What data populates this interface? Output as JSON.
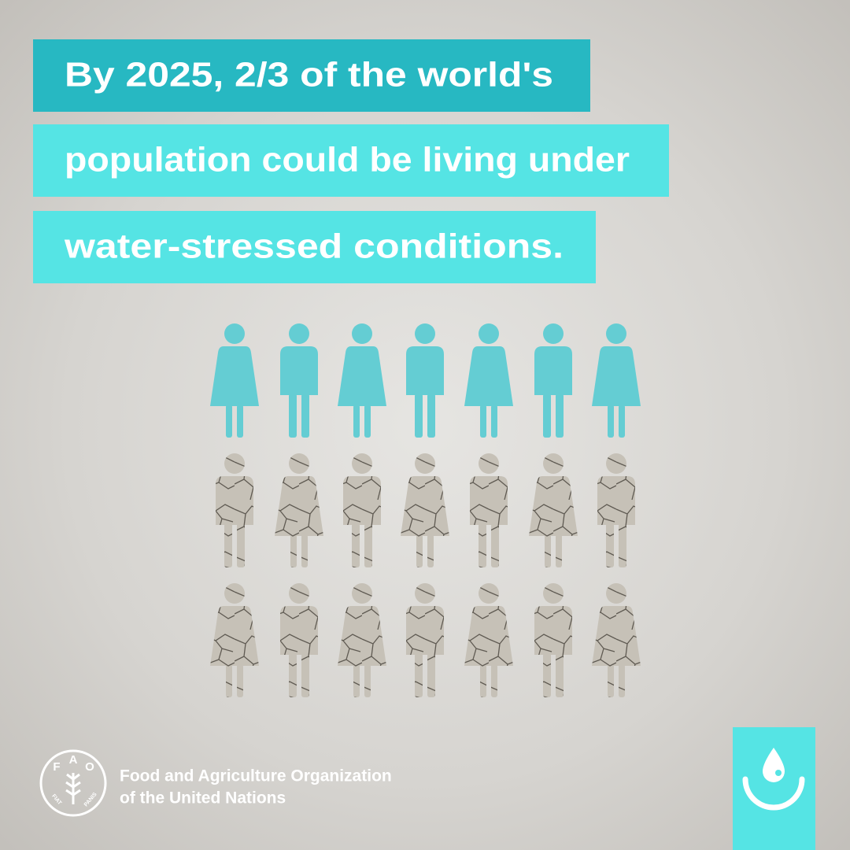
{
  "headline": {
    "lines": [
      "By 2025, 2/3 of the world's",
      "population could be living under",
      "water-stressed conditions."
    ]
  },
  "logo": {
    "emblem_letters": [
      "F",
      "A",
      "O"
    ],
    "motto": [
      "FIAT",
      "PANIS"
    ],
    "name_lines": [
      "Food and Agriculture Organization",
      "of the United Nations"
    ]
  }
}
